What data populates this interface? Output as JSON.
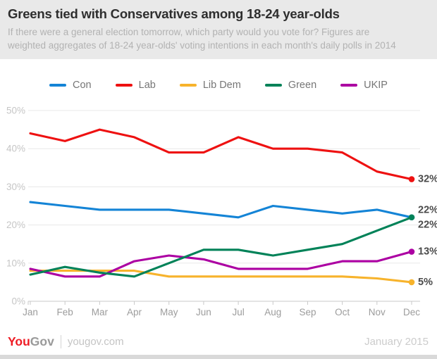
{
  "header": {
    "title": "Greens tied with Conservatives among 18-24 year-olds",
    "subtitle": "If there were a general election tomorrow, which party would you vote for? Figures are weighted aggregates of 18-24 year-olds' voting intentions in each month's daily polls in 2014"
  },
  "chart_data": {
    "type": "line",
    "title": "Greens tied with Conservatives among 18-24 year-olds",
    "categories": [
      "Jan",
      "Feb",
      "Mar",
      "Apr",
      "May",
      "Jun",
      "Jul",
      "Aug",
      "Sep",
      "Oct",
      "Nov",
      "Dec"
    ],
    "series": [
      {
        "name": "Con",
        "color": "#1484d6",
        "z": 1,
        "end_label": "22%",
        "values": [
          26,
          25,
          24,
          24,
          24,
          23,
          22,
          25,
          24,
          23,
          24,
          22
        ]
      },
      {
        "name": "Lab",
        "color": "#ee1111",
        "z": 2,
        "end_label": "32%",
        "values": [
          44,
          42,
          45,
          43,
          39,
          39,
          43,
          40,
          40,
          39,
          34,
          32
        ]
      },
      {
        "name": "Lib Dem",
        "color": "#f7b32c",
        "z": 3,
        "end_label": "5%",
        "values": [
          8,
          8,
          8,
          8,
          6.5,
          6.5,
          6.5,
          6.5,
          6.5,
          6.5,
          6,
          5
        ]
      },
      {
        "name": "Green",
        "color": "#008258",
        "z": 5,
        "end_label": "22%",
        "values": [
          7,
          9,
          7.5,
          6.5,
          10,
          13.5,
          13.5,
          12,
          13.5,
          15,
          18.5,
          22
        ]
      },
      {
        "name": "UKIP",
        "color": "#ac00a2",
        "z": 4,
        "end_label": "13%",
        "values": [
          8.5,
          6.5,
          6.5,
          10.5,
          12,
          11,
          8.5,
          8.5,
          8.5,
          10.5,
          10.5,
          13
        ]
      }
    ],
    "ylim": [
      0,
      50
    ],
    "yticks": [
      "0%",
      "10%",
      "20%",
      "30%",
      "40%",
      "50%"
    ],
    "xlabel": "",
    "ylabel": "",
    "grid": true,
    "legend_position": "top"
  },
  "footer": {
    "logo_you": "You",
    "logo_gov": "Gov",
    "site": "yougov.com",
    "date": "January 2015"
  },
  "colors": {
    "header_bg": "#e9e9e9",
    "grid": "#e8e8e8",
    "axis": "#c9c9c9",
    "ytick_label": "#c6c6c6",
    "xtick_label": "#9c9c9c",
    "end_label": "#4a4a4a"
  }
}
